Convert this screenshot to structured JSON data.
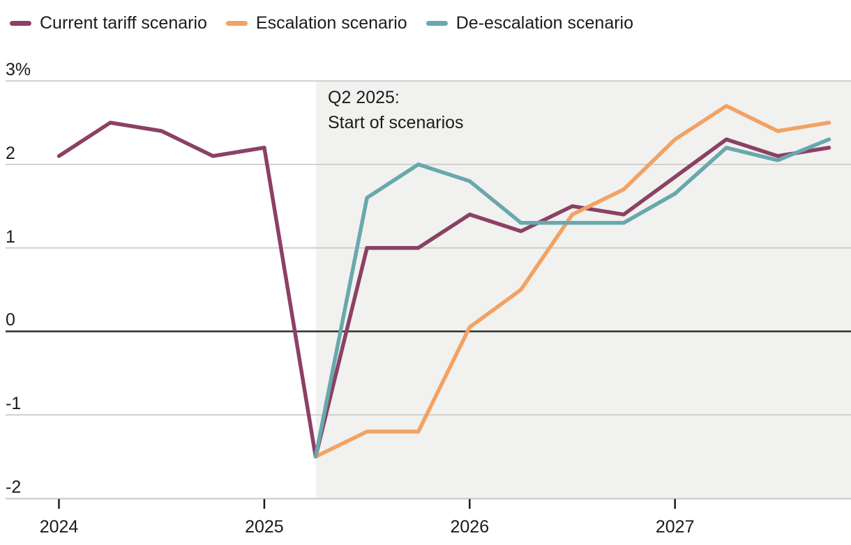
{
  "legend": {
    "items": [
      {
        "id": "current-tariff",
        "label": "Current tariff scenario",
        "color": "#8b4164"
      },
      {
        "id": "escalation",
        "label": "Escalation scenario",
        "color": "#f2a263"
      },
      {
        "id": "de-escalation",
        "label": "De-escalation scenario",
        "color": "#69a8ad"
      }
    ]
  },
  "chart_data": {
    "type": "line",
    "unit": "percent",
    "title": "",
    "quarters": [
      "Q1 2024",
      "Q2 2024",
      "Q3 2024",
      "Q4 2024",
      "Q1 2025",
      "Q2 2025",
      "Q3 2025",
      "Q4 2025",
      "Q1 2026",
      "Q2 2026",
      "Q3 2026",
      "Q4 2026",
      "Q1 2027",
      "Q2 2027",
      "Q3 2027",
      "Q4 2027"
    ],
    "x_axis": {
      "labels": [
        "2024",
        "2025",
        "2026",
        "2027"
      ],
      "label_quarter_indices": [
        0,
        4,
        8,
        12
      ]
    },
    "y_axis": {
      "tick_labels": [
        "3%",
        "2",
        "1",
        "0",
        "-1",
        "-2"
      ],
      "tick_values": [
        3,
        2,
        1,
        0,
        -1,
        -2
      ],
      "range": [
        -2,
        3
      ]
    },
    "grid": true,
    "legend_position": "top-left",
    "zero_line": true,
    "shaded_region": {
      "from_quarter_index": 5,
      "from_quarter_label": "Q2 2025",
      "color": "#f1f1ef"
    },
    "annotation": {
      "line1": "Q2 2025:",
      "line2": "Start of scenarios"
    },
    "series": [
      {
        "id": "current-tariff",
        "name": "Current tariff scenario",
        "color": "#8b4164",
        "start_index": 0,
        "values": [
          2.1,
          2.5,
          2.4,
          2.1,
          2.2,
          -1.5,
          1.0,
          1.0,
          1.4,
          1.2,
          1.5,
          1.4,
          1.85,
          2.3,
          2.1,
          2.2
        ]
      },
      {
        "id": "escalation",
        "name": "Escalation scenario",
        "color": "#f2a263",
        "start_index": 5,
        "values": [
          -1.5,
          -1.2,
          -1.2,
          0.05,
          0.5,
          1.4,
          1.7,
          2.3,
          2.7,
          2.4,
          2.5
        ]
      },
      {
        "id": "de-escalation",
        "name": "De-escalation scenario",
        "color": "#69a8ad",
        "start_index": 5,
        "values": [
          -1.5,
          1.6,
          2.0,
          1.8,
          1.3,
          1.3,
          1.3,
          1.65,
          2.2,
          2.05,
          2.3
        ]
      }
    ]
  }
}
